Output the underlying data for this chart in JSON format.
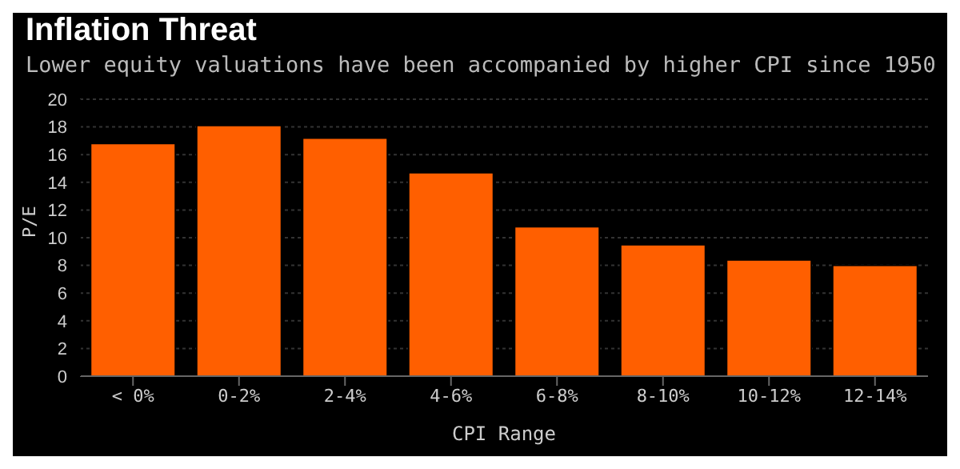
{
  "chart_data": {
    "type": "bar",
    "title": "Inflation Threat",
    "subtitle": "Lower equity valuations have been accompanied by higher CPI since 1950",
    "xlabel": "CPI Range",
    "ylabel": "P/E",
    "categories": [
      "< 0%",
      "0-2%",
      "2-4%",
      "4-6%",
      "6-8%",
      "8-10%",
      "10-12%",
      "12-14%"
    ],
    "values": [
      16.8,
      18.1,
      17.2,
      14.7,
      10.8,
      9.5,
      8.4,
      8.0
    ],
    "color": "#ff5f00",
    "ylim": [
      0,
      20
    ],
    "yticks": [
      0,
      2,
      4,
      6,
      8,
      10,
      12,
      14,
      16,
      18,
      20
    ],
    "grid": "y",
    "legend": false
  }
}
